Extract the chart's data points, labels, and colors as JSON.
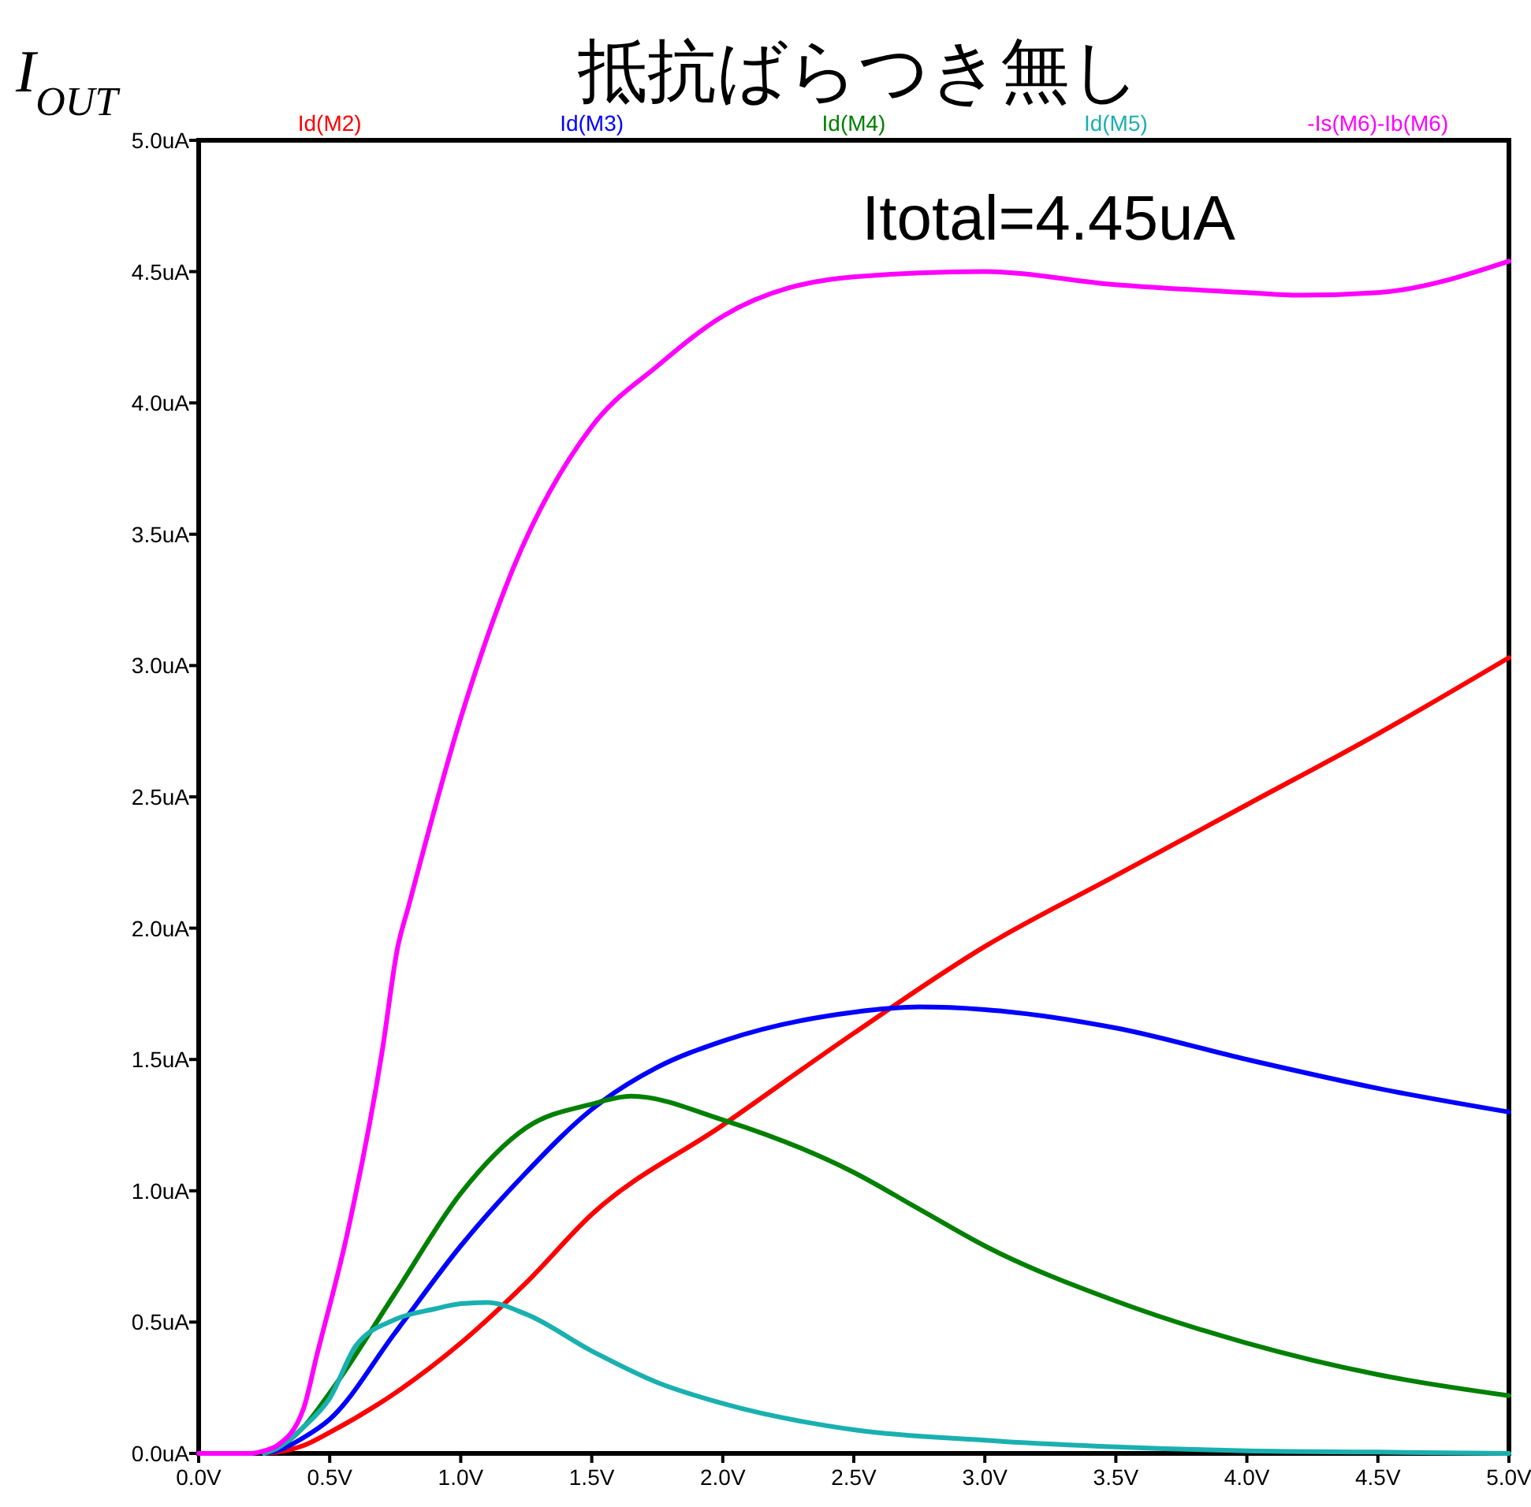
{
  "chart_data": {
    "type": "line",
    "title": "抵抗ばらつき無し",
    "ylabel": "I$_{OUT}$",
    "annotations": [
      "Itotal=4.45uA"
    ],
    "xlim": [
      0,
      5
    ],
    "ylim": [
      0,
      5
    ],
    "xticks": [
      {
        "value": 0,
        "label": "0.0V"
      },
      {
        "value": 0.5,
        "label": "0.5V"
      },
      {
        "value": 1,
        "label": "1.0V"
      },
      {
        "value": 1.5,
        "label": "1.5V"
      },
      {
        "value": 2,
        "label": "2.0V"
      },
      {
        "value": 2.5,
        "label": "2.5V"
      },
      {
        "value": 3,
        "label": "3.0V"
      },
      {
        "value": 3.5,
        "label": "3.5V"
      },
      {
        "value": 4,
        "label": "4.0V"
      },
      {
        "value": 4.5,
        "label": "4.5V"
      },
      {
        "value": 5,
        "label": "5.0V"
      }
    ],
    "yticks": [
      {
        "value": 0,
        "label": "0.0uA"
      },
      {
        "value": 0.5,
        "label": "0.5uA"
      },
      {
        "value": 1,
        "label": "1.0uA"
      },
      {
        "value": 1.5,
        "label": "1.5uA"
      },
      {
        "value": 2,
        "label": "2.0uA"
      },
      {
        "value": 2.5,
        "label": "2.5uA"
      },
      {
        "value": 3,
        "label": "3.0uA"
      },
      {
        "value": 3.5,
        "label": "3.5uA"
      },
      {
        "value": 4,
        "label": "4.0uA"
      },
      {
        "value": 4.5,
        "label": "4.5uA"
      },
      {
        "value": 5,
        "label": "5.0uA"
      }
    ],
    "grid": false,
    "legend": "top",
    "marker": "none",
    "line_style": "solid",
    "series": [
      {
        "name": "Id(M2)",
        "color": "#ff0000",
        "x": [
          0.25,
          0.3,
          0.4,
          0.5,
          0.75,
          1,
          1.25,
          1.5,
          2,
          2.5,
          3,
          3.5,
          4,
          4.5,
          5
        ],
        "values": [
          0,
          0.005,
          0.03,
          0.08,
          0.23,
          0.42,
          0.65,
          0.91,
          1.25,
          1.6,
          1.93,
          2.2,
          2.47,
          2.74,
          3.03
        ]
      },
      {
        "name": "Id(M3)",
        "color": "#0000ff",
        "x": [
          0.25,
          0.3,
          0.4,
          0.5,
          0.75,
          1,
          1.25,
          1.5,
          1.75,
          2,
          2.5,
          2.75,
          3,
          3.5,
          4,
          4.5,
          5
        ],
        "values": [
          0,
          0.01,
          0.06,
          0.13,
          0.46,
          0.79,
          1.07,
          1.31,
          1.47,
          1.57,
          1.68,
          1.7,
          1.69,
          1.62,
          1.5,
          1.39,
          1.3
        ]
      },
      {
        "name": "Id(M4)",
        "color": "#008000",
        "x": [
          0.25,
          0.3,
          0.4,
          0.5,
          0.75,
          1,
          1.25,
          1.5,
          1.65,
          2,
          2.5,
          2.75,
          3,
          3.5,
          4,
          4.5,
          5
        ],
        "values": [
          0,
          0.02,
          0.1,
          0.23,
          0.61,
          0.99,
          1.24,
          1.33,
          1.36,
          1.27,
          1.07,
          0.93,
          0.79,
          0.58,
          0.42,
          0.3,
          0.22
        ]
      },
      {
        "name": "Id(M5)",
        "color": "#1ab0b0",
        "x": [
          0.25,
          0.3,
          0.4,
          0.5,
          0.6,
          0.75,
          0.9,
          1,
          1.1,
          1.25,
          1.5,
          1.75,
          2,
          2.5,
          3,
          3.5,
          4,
          4.5,
          5
        ],
        "values": [
          0,
          0.02,
          0.1,
          0.21,
          0.41,
          0.51,
          0.55,
          0.57,
          0.575,
          0.53,
          0.39,
          0.27,
          0.19,
          0.09,
          0.05,
          0.025,
          0.01,
          0.005,
          0
        ]
      },
      {
        "name": "-Is(M6)-Ib(M6)",
        "color": "#ff00ff",
        "x": [
          0,
          0.2,
          0.25,
          0.3,
          0.4,
          0.45,
          0.57,
          0.7,
          0.76,
          0.8,
          1,
          1.2,
          1.5,
          1.75,
          2,
          2.5,
          3,
          3.5,
          4,
          4.2,
          4.5,
          5
        ],
        "values": [
          0,
          0,
          0.01,
          0.03,
          0.17,
          0.37,
          0.85,
          1.53,
          1.93,
          2.08,
          2.8,
          3.37,
          3.91,
          4.14,
          4.33,
          4.48,
          4.5,
          4.45,
          4.42,
          4.41,
          4.42,
          4.54
        ]
      }
    ]
  }
}
